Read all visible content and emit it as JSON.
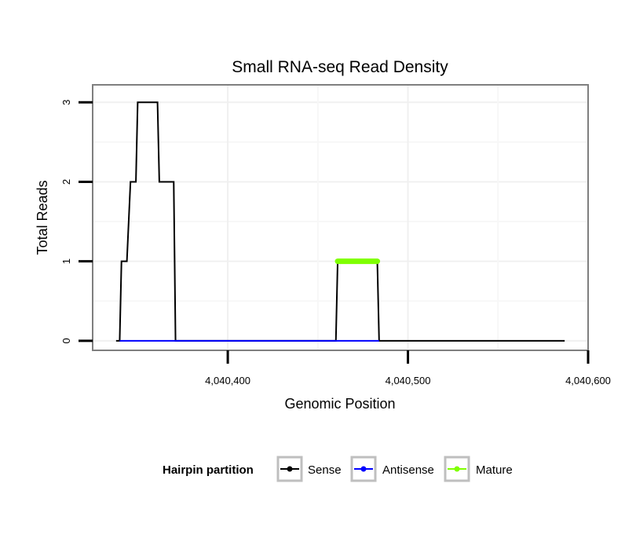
{
  "chart_data": {
    "type": "line",
    "title": "Small RNA-seq Read Density",
    "xlabel": "Genomic Position",
    "ylabel": "Total Reads",
    "xlim": [
      4040325,
      4040600
    ],
    "ylim": [
      -0.12,
      3.22
    ],
    "x_ticks": [
      4040400,
      4040500,
      4040600
    ],
    "x_tick_labels": [
      "4,040,400",
      "4,040,500",
      "4,040,600"
    ],
    "y_ticks": [
      0,
      1,
      2,
      3
    ],
    "y_tick_labels": [
      "0",
      "1",
      "2",
      "3"
    ],
    "grid": true,
    "legend": {
      "title": "Hairpin partition",
      "position": "bottom",
      "entries": [
        "Sense",
        "Antisense",
        "Mature"
      ]
    },
    "series": [
      {
        "name": "Sense",
        "color": "#000000",
        "x": [
          4040338,
          4040340,
          4040341,
          4040343,
          4040344,
          4040346,
          4040347,
          4040349,
          4040350,
          4040352,
          4040353,
          4040355,
          4040356,
          4040358,
          4040359,
          4040361,
          4040362,
          4040364,
          4040365,
          4040367,
          4040368,
          4040370,
          4040371,
          4040380,
          4040460,
          4040461,
          4040470,
          4040483,
          4040484,
          4040500,
          4040587
        ],
        "values": [
          0,
          0,
          1,
          1,
          1,
          2,
          2,
          2,
          3,
          3,
          3,
          3,
          3,
          3,
          3,
          3,
          2,
          2,
          2,
          2,
          2,
          2,
          0,
          0,
          0,
          1,
          1,
          1,
          0,
          0,
          0
        ]
      },
      {
        "name": "Antisense",
        "color": "#0000ff",
        "x": [
          4040340,
          4040371,
          4040460,
          4040484
        ],
        "values": [
          0,
          0,
          0,
          0
        ]
      },
      {
        "name": "Mature",
        "color": "#7fff00",
        "x": [
          4040461,
          4040483
        ],
        "values": [
          1,
          1
        ]
      }
    ]
  }
}
